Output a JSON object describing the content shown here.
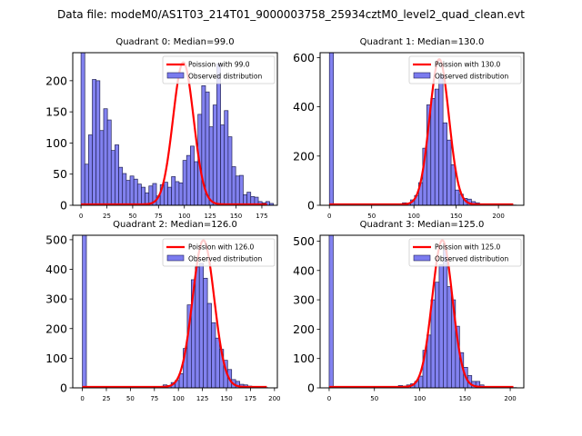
{
  "figure": {
    "suptitle": "Data file: modeM0/AS1T03_214T01_9000003758_25934cztM0_level2_quad_clean.evt"
  },
  "colors": {
    "bar_fill": "#7b7bef",
    "bar_edge": "#222255",
    "poisson_line": "#ff0000",
    "axes": "#000000"
  },
  "chart_data": [
    {
      "type": "bar",
      "title": "Quadrant 0: Median=99.0",
      "xlabel": "",
      "ylabel": "",
      "xlim": [
        -8,
        190
      ],
      "ylim": [
        0,
        245
      ],
      "xticks": [
        0,
        25,
        50,
        75,
        100,
        125,
        150,
        175
      ],
      "yticks": [
        0,
        50,
        100,
        150,
        200
      ],
      "bin_width": 3.65,
      "bin_start": 0,
      "values": [
        245,
        66,
        113,
        202,
        200,
        120,
        155,
        137,
        88,
        97,
        61,
        51,
        40,
        47,
        42,
        34,
        29,
        20,
        31,
        35,
        15,
        33,
        37,
        29,
        46,
        38,
        36,
        72,
        80,
        95,
        70,
        146,
        192,
        182,
        126,
        161,
        227,
        129,
        152,
        110,
        62,
        47,
        48,
        17,
        21,
        14,
        13,
        6,
        4,
        6,
        3
      ],
      "poisson_mean": 99.0,
      "poisson_peak": 228,
      "legend": [
        "Poission with 99.0",
        "Observed distribution"
      ],
      "legend_position": "upper right"
    },
    {
      "type": "bar",
      "title": "Quadrant 1: Median=130.0",
      "xlabel": "",
      "ylabel": "",
      "xlim": [
        -11,
        230
      ],
      "ylim": [
        0,
        620
      ],
      "xticks": [
        0,
        50,
        100,
        150,
        200
      ],
      "yticks": [
        0,
        200,
        400,
        600
      ],
      "bin_width": 4.8,
      "bin_start": 0,
      "values": [
        620,
        0,
        0,
        0,
        0,
        0,
        0,
        0,
        0,
        0,
        0,
        0,
        0,
        0,
        0,
        1,
        2,
        4,
        10,
        6,
        22,
        40,
        92,
        232,
        408,
        434,
        472,
        530,
        335,
        265,
        165,
        62,
        45,
        28,
        25,
        15,
        10,
        5,
        3,
        2,
        2,
        1,
        1,
        0,
        0,
        1
      ],
      "poisson_mean": 130.0,
      "poisson_peak": 590,
      "legend": [
        "Poission with 130.0",
        "Observed distribution"
      ],
      "legend_position": "upper right"
    },
    {
      "type": "bar",
      "title": "Quadrant 2: Median=126.0",
      "xlabel": "",
      "ylabel": "",
      "xlim": [
        -10,
        203
      ],
      "ylim": [
        0,
        515
      ],
      "xticks": [
        0,
        25,
        50,
        75,
        100,
        125,
        150,
        175,
        200
      ],
      "yticks": [
        0,
        100,
        200,
        300,
        400,
        500
      ],
      "bin_width": 4.2,
      "bin_start": 0,
      "values": [
        515,
        0,
        0,
        0,
        0,
        0,
        0,
        0,
        0,
        0,
        0,
        0,
        0,
        0,
        0,
        0,
        0,
        0,
        2,
        4,
        10,
        8,
        18,
        25,
        48,
        133,
        280,
        365,
        408,
        420,
        370,
        285,
        220,
        168,
        130,
        93,
        62,
        28,
        22,
        12,
        10,
        6,
        4,
        2,
        1,
        1
      ],
      "poisson_mean": 126.0,
      "poisson_peak": 495,
      "legend": [
        "Poission with 126.0",
        "Observed distribution"
      ],
      "legend_position": "upper right"
    },
    {
      "type": "bar",
      "title": "Quadrant 3: Median=125.0",
      "xlabel": "",
      "ylabel": "",
      "xlim": [
        -10,
        215
      ],
      "ylim": [
        0,
        520
      ],
      "xticks": [
        0,
        50,
        100,
        150,
        200
      ],
      "yticks": [
        0,
        100,
        200,
        300,
        400,
        500
      ],
      "bin_width": 4.5,
      "bin_start": 0,
      "values": [
        520,
        0,
        0,
        0,
        0,
        0,
        0,
        0,
        0,
        0,
        0,
        0,
        0,
        0,
        0,
        0,
        0,
        8,
        6,
        10,
        14,
        22,
        40,
        128,
        180,
        300,
        360,
        420,
        470,
        345,
        300,
        210,
        120,
        70,
        42,
        22,
        22,
        10,
        5,
        3,
        2,
        1,
        1,
        0,
        0,
        1
      ],
      "poisson_mean": 125.0,
      "poisson_peak": 500,
      "legend": [
        "Poission with 125.0",
        "Observed distribution"
      ],
      "legend_position": "upper right"
    }
  ]
}
